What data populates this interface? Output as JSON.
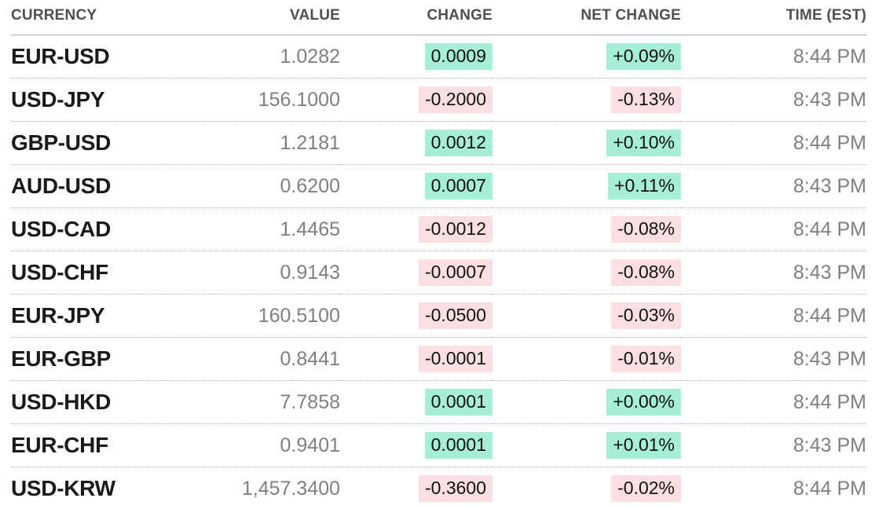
{
  "chart_data": {
    "type": "table",
    "columns": [
      "CURRENCY",
      "VALUE",
      "CHANGE",
      "NET CHANGE",
      "TIME (EST)"
    ],
    "rows": [
      {
        "currency": "EUR-USD",
        "value": "1.0282",
        "change": "0.0009",
        "net_change": "+0.09%",
        "direction": "up",
        "time": "8:44 PM"
      },
      {
        "currency": "USD-JPY",
        "value": "156.1000",
        "change": "-0.2000",
        "net_change": "-0.13%",
        "direction": "down",
        "time": "8:43 PM"
      },
      {
        "currency": "GBP-USD",
        "value": "1.2181",
        "change": "0.0012",
        "net_change": "+0.10%",
        "direction": "up",
        "time": "8:44 PM"
      },
      {
        "currency": "AUD-USD",
        "value": "0.6200",
        "change": "0.0007",
        "net_change": "+0.11%",
        "direction": "up",
        "time": "8:43 PM"
      },
      {
        "currency": "USD-CAD",
        "value": "1.4465",
        "change": "-0.0012",
        "net_change": "-0.08%",
        "direction": "down",
        "time": "8:44 PM"
      },
      {
        "currency": "USD-CHF",
        "value": "0.9143",
        "change": "-0.0007",
        "net_change": "-0.08%",
        "direction": "down",
        "time": "8:43 PM"
      },
      {
        "currency": "EUR-JPY",
        "value": "160.5100",
        "change": "-0.0500",
        "net_change": "-0.03%",
        "direction": "down",
        "time": "8:44 PM"
      },
      {
        "currency": "EUR-GBP",
        "value": "0.8441",
        "change": "-0.0001",
        "net_change": "-0.01%",
        "direction": "down",
        "time": "8:43 PM"
      },
      {
        "currency": "USD-HKD",
        "value": "7.7858",
        "change": "0.0001",
        "net_change": "+0.00%",
        "direction": "up",
        "time": "8:44 PM"
      },
      {
        "currency": "EUR-CHF",
        "value": "0.9401",
        "change": "0.0001",
        "net_change": "+0.01%",
        "direction": "up",
        "time": "8:43 PM"
      },
      {
        "currency": "USD-KRW",
        "value": "1,457.3400",
        "change": "-0.3600",
        "net_change": "-0.02%",
        "direction": "down",
        "time": "8:44 PM"
      }
    ]
  },
  "colors": {
    "positive_bg": "#a6eed7",
    "negative_bg": "#fcdfe2",
    "badge_text": "#111111",
    "pair_text": "#1a1a1a",
    "muted_text": "#7f7f7f",
    "header_text": "#4f4f4f",
    "header_rule": "#aaaaaa",
    "row_rule": "#b3b3b3"
  }
}
